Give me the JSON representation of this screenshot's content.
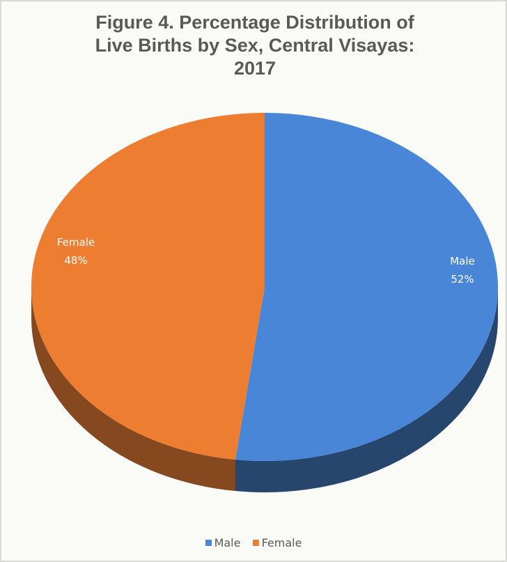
{
  "chart_data": {
    "type": "pie",
    "title_lines": [
      "Figure 4. Percentage Distribution of",
      "Live Births by Sex, Central Visayas:",
      "2017"
    ],
    "slices": [
      {
        "name": "Male",
        "value": 52,
        "label": "52%",
        "color": "#4a86d8",
        "side_color": "#27466e"
      },
      {
        "name": "Female",
        "value": 48,
        "label": "48%",
        "color": "#ed7d31",
        "side_color": "#86491f"
      }
    ],
    "legend": {
      "position": "bottom",
      "items": [
        "Male",
        "Female"
      ]
    },
    "style": "3d"
  }
}
